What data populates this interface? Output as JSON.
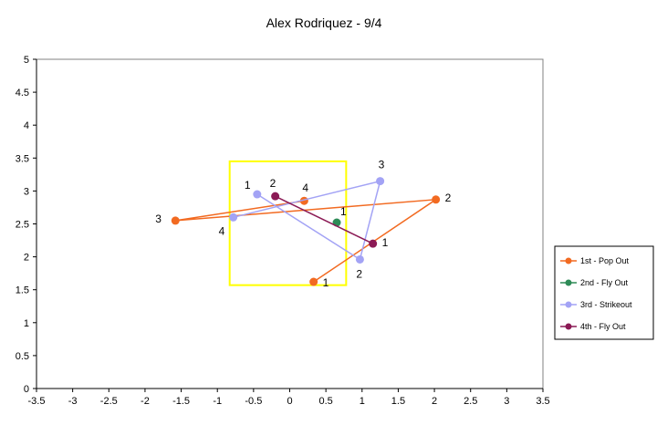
{
  "chart_data": {
    "type": "scatter",
    "title": "Alex Rodriquez - 9/4",
    "xlim": [
      -3.5,
      3.5
    ],
    "ylim": [
      0,
      5
    ],
    "xticks": [
      -3.5,
      -3,
      -2.5,
      -2,
      -1.5,
      -1,
      -0.5,
      0,
      0.5,
      1,
      1.5,
      2,
      2.5,
      3,
      3.5
    ],
    "yticks": [
      0,
      0.5,
      1,
      1.5,
      2,
      2.5,
      3,
      3.5,
      4,
      4.5,
      5
    ],
    "xtick_labels": [
      "-3.5",
      "-3",
      "-2.5",
      "-2",
      "-1.5",
      "-1",
      "-0.5",
      "0",
      "0.5",
      "1",
      "1.5",
      "2",
      "2.5",
      "3",
      "3.5"
    ],
    "ytick_labels": [
      "0",
      "0.5",
      "1",
      "1.5",
      "2",
      "2.5",
      "3",
      "3.5",
      "4",
      "4.5",
      "5"
    ],
    "grid": false,
    "legend_position": "right",
    "strike_zone": {
      "x": [
        -0.83,
        0.78
      ],
      "y": [
        1.57,
        3.45
      ],
      "color": "#ffff00"
    },
    "series": [
      {
        "name": "1st - Pop Out",
        "color": "#f26a21",
        "points": [
          {
            "x": 0.33,
            "y": 1.62,
            "label": "1"
          },
          {
            "x": 2.02,
            "y": 2.87,
            "label": "2"
          },
          {
            "x": -1.58,
            "y": 2.55,
            "label": "3"
          },
          {
            "x": 0.2,
            "y": 2.85,
            "label": "4"
          }
        ]
      },
      {
        "name": "2nd - Fly Out",
        "color": "#2e8b57",
        "points": [
          {
            "x": 0.65,
            "y": 2.52,
            "label": "1"
          }
        ]
      },
      {
        "name": "3rd - Strikeout",
        "color": "#a3a3f5",
        "points": [
          {
            "x": -0.45,
            "y": 2.95,
            "label": "1"
          },
          {
            "x": 0.97,
            "y": 1.96,
            "label": "2"
          },
          {
            "x": 1.25,
            "y": 3.15,
            "label": "3"
          },
          {
            "x": -0.78,
            "y": 2.6,
            "label": "4"
          }
        ]
      },
      {
        "name": "4th - Fly Out",
        "color": "#8b1a55",
        "points": [
          {
            "x": -0.2,
            "y": 2.92,
            "label": "2"
          },
          {
            "x": 1.15,
            "y": 2.2,
            "label": "1"
          }
        ]
      }
    ]
  }
}
